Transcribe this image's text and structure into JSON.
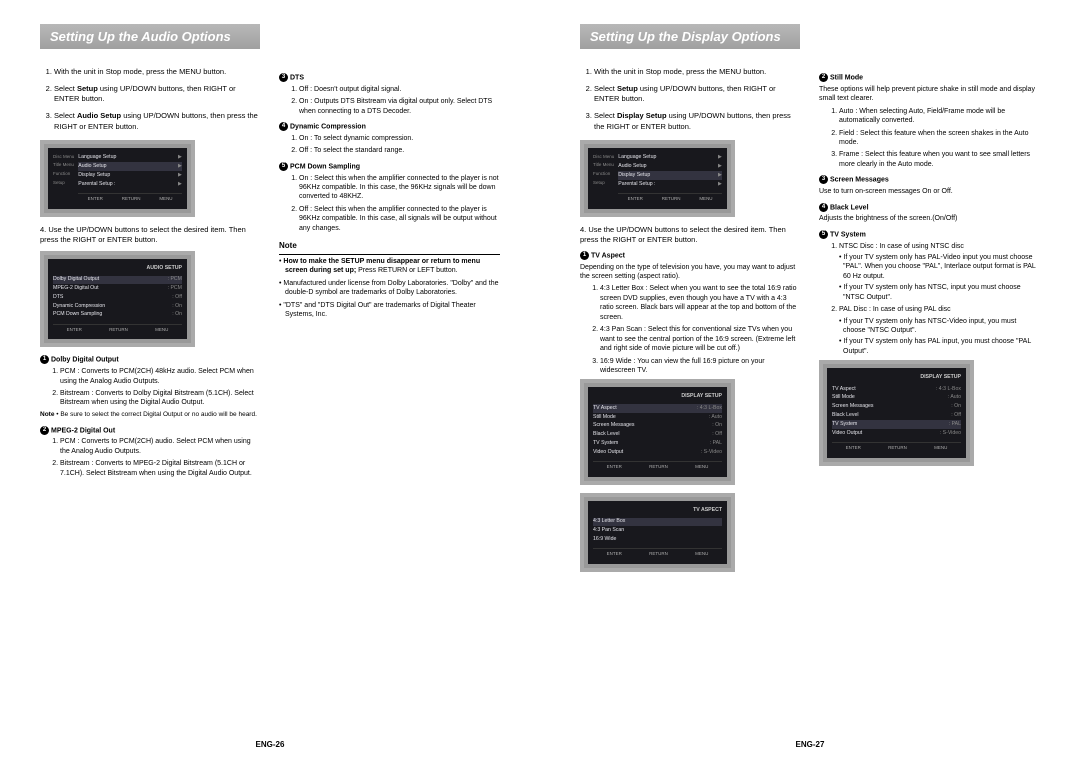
{
  "leftPage": {
    "title": "Setting Up the Audio Options",
    "steps": [
      "With the unit in Stop mode, press the MENU button.",
      "Select <b>Setup</b> using UP/DOWN buttons, then RIGHT or ENTER button.",
      "Select <b>Audio Setup</b> using UP/DOWN buttons, then press the RIGHT or ENTER button."
    ],
    "step4": "Use the UP/DOWN buttons to select the desired item. Then press the RIGHT or ENTER button.",
    "osd1": {
      "side": [
        "Disc Menu",
        "Title Menu",
        "Function",
        "Setup"
      ],
      "items": [
        {
          "l": "Language Setup",
          "r": "▶"
        },
        {
          "l": "Audio Setup",
          "r": "▶",
          "sel": true
        },
        {
          "l": "Display Setup",
          "r": "▶"
        },
        {
          "l": "Parental Setup :",
          "r": "▶"
        }
      ],
      "footer": [
        "ENTER",
        "RETURN",
        "MENU"
      ]
    },
    "osd2": {
      "header": "AUDIO SETUP",
      "items": [
        {
          "l": "Dolby Digital Output",
          "r": ": PCM",
          "sel": true
        },
        {
          "l": "MPEG-2 Digital Out",
          "r": ": PCM"
        },
        {
          "l": "DTS",
          "r": ": Off"
        },
        {
          "l": "Dynamic Compression",
          "r": ": On"
        },
        {
          "l": "PCM Down Sampling",
          "r": ": On"
        }
      ],
      "footer": [
        "ENTER",
        "RETURN",
        "MENU"
      ]
    },
    "opt1": {
      "num": "1",
      "title": "Dolby Digital Output",
      "items": [
        "PCM : Converts to PCM(2CH) 48kHz audio. Select PCM when using the Analog Audio Outputs.",
        "Bitstream : Converts to Dolby Digital Bitstream (5.1CH). Select Bitstream when using the Digital Audio Output."
      ],
      "note": "Be sure to select the correct Digital Output or no audio will be heard."
    },
    "opt2": {
      "num": "2",
      "title": "MPEG-2 Digital Out",
      "items": [
        "PCM : Converts to PCM(2CH) audio. Select PCM when using the Analog Audio Outputs.",
        "Bitstream : Converts to MPEG-2 Digital Bitstream (5.1CH or 7.1CH). Select Bitstream when using the Digital Audio Output."
      ]
    },
    "opt3": {
      "num": "3",
      "title": "DTS",
      "items": [
        "Off : Doesn't output digital signal.",
        "On : Outputs DTS Bitstream via digital output only. Select DTS when connecting to a DTS Decoder."
      ]
    },
    "opt4": {
      "num": "4",
      "title": "Dynamic Compression",
      "items": [
        "On : To select dynamic compression.",
        "Off : To select the standard range."
      ]
    },
    "opt5": {
      "num": "5",
      "title": "PCM Down Sampling",
      "items": [
        "On : Select this when the amplifier connected to the player is not 96KHz compatible. In this case, the 96KHz signals will be down converted to 48KHZ.",
        "Off : Select this when the amplifier connected to the player is 96KHz compatible. In this case, all signals will be output without any changes."
      ]
    },
    "noteSection": {
      "label": "Note",
      "lines": [
        "• <b>How to make the SETUP menu disappear or return to menu screen during set up;</b> Press RETURN or LEFT button.",
        "• Manufactured under license from Dolby Laboratories. \"Dolby\" and the double-D symbol are trademarks of Dolby Laboratories.",
        "• \"DTS\" and \"DTS Digital Out\" are trademarks of Digital Theater Systems, Inc."
      ]
    },
    "footer": "ENG-26"
  },
  "rightPage": {
    "title": "Setting Up the Display Options",
    "steps": [
      "With the unit in Stop mode, press the MENU button.",
      "Select <b>Setup</b> using UP/DOWN buttons, then RIGHT or ENTER button.",
      "Select <b>Display Setup</b> using UP/DOWN buttons, then press the RIGHT or ENTER button."
    ],
    "step4": "Use the UP/DOWN buttons to select the desired item. Then press the RIGHT or ENTER button.",
    "osd1": {
      "side": [
        "Disc Menu",
        "Title Menu",
        "Function",
        "Setup"
      ],
      "items": [
        {
          "l": "Language Setup",
          "r": "▶"
        },
        {
          "l": "Audio Setup",
          "r": "▶"
        },
        {
          "l": "Display Setup",
          "r": "▶",
          "sel": true
        },
        {
          "l": "Parental Setup :",
          "r": "▶"
        }
      ],
      "footer": [
        "ENTER",
        "RETURN",
        "MENU"
      ]
    },
    "osd2": {
      "header": "DISPLAY SETUP",
      "items": [
        {
          "l": "TV Aspect",
          "r": ": 4:3 L-Box",
          "sel": true
        },
        {
          "l": "Still Mode",
          "r": ": Auto"
        },
        {
          "l": "Screen Messages",
          "r": ": On"
        },
        {
          "l": "Black Level",
          "r": ": Off"
        },
        {
          "l": "TV System",
          "r": ": PAL"
        },
        {
          "l": "Video Output",
          "r": ": S-Video"
        }
      ],
      "footer": [
        "ENTER",
        "RETURN",
        "MENU"
      ]
    },
    "osd3": {
      "header": "TV ASPECT",
      "items": [
        {
          "l": "4:3 Letter Box",
          "sel": true
        },
        {
          "l": "4:3 Pan Scan"
        },
        {
          "l": "16:9 Wide"
        }
      ],
      "footer": [
        "ENTER",
        "RETURN",
        "MENU"
      ]
    },
    "opt1": {
      "num": "1",
      "title": "TV Aspect",
      "intro": "Depending on the type of television you have, you may want to adjust the screen setting (aspect ratio).",
      "items": [
        "4:3 Letter Box : Select when you want to see the total 16:9 ratio screen DVD supplies, even though you have a TV with a 4:3 ratio screen. Black bars will appear at the top and bottom of the screen.",
        "4:3 Pan Scan : Select this for conventional size TVs when you want to see the central portion of the 16:9 screen. (Extreme left and right side of movie picture will be cut off.)",
        "16:9 Wide : You can view the full 16:9 picture on your widescreen TV."
      ]
    },
    "opt2": {
      "num": "2",
      "title": "Still Mode",
      "intro": "These options will help prevent picture shake in still mode and display small text clearer.",
      "items": [
        "Auto : When selecting Auto, Field/Frame mode will be automatically converted.",
        "Field : Select this feature when the screen shakes in the Auto mode.",
        "Frame : Select this feature when you want to see small letters more clearly in the Auto mode."
      ]
    },
    "opt3": {
      "num": "3",
      "title": "Screen Messages",
      "intro": "Use to turn on-screen messages On or Off."
    },
    "opt4": {
      "num": "4",
      "title": "Black Level",
      "intro": "Adjusts the brightness of the screen.(On/Off)"
    },
    "opt5": {
      "num": "5",
      "title": "TV System",
      "items2": [
        {
          "head": "NTSC Disc : In case of using NTSC disc",
          "bullets": [
            "If your TV system only has PAL-Video input you must choose \"PAL\". When you choose \"PAL\", Interlace output format is PAL 60 Hz output.",
            "If your TV system only has NTSC, input you must choose \"NTSC Output\"."
          ]
        },
        {
          "head": "PAL Disc : In case of using PAL disc",
          "bullets": [
            "If your TV system only has NTSC-Video input, you must choose \"NTSC Output\".",
            "If your TV system only has PAL input, you must choose \"PAL Output\"."
          ]
        }
      ]
    },
    "osd4": {
      "header": "DISPLAY SETUP",
      "items": [
        {
          "l": "TV Aspect",
          "r": ": 4:3 L-Box"
        },
        {
          "l": "Still Mode",
          "r": ": Auto"
        },
        {
          "l": "Screen Messages",
          "r": ": On"
        },
        {
          "l": "Black Level",
          "r": ": Off"
        },
        {
          "l": "TV System",
          "r": ": PAL",
          "sel": true
        },
        {
          "l": "Video Output",
          "r": ": S-Video"
        }
      ],
      "footer": [
        "ENTER",
        "RETURN",
        "MENU"
      ]
    },
    "footer": "ENG-27"
  }
}
